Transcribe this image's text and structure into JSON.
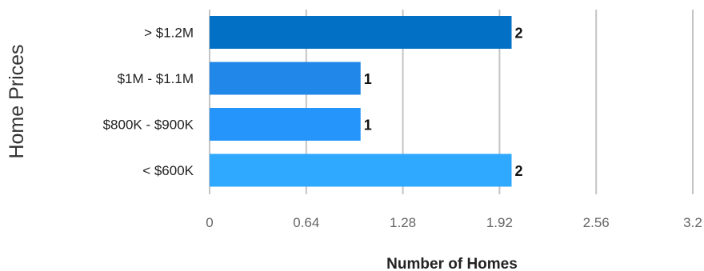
{
  "chart_data": {
    "type": "bar",
    "orientation": "horizontal",
    "title": "",
    "xlabel": "Number of Homes",
    "ylabel": "Home Prices",
    "categories": [
      "> $1.2M",
      "$1M - $1.1M",
      "$800K - $900K",
      "< $600K"
    ],
    "values": [
      2,
      1,
      1,
      2
    ],
    "data_labels": [
      "2",
      "1",
      "1",
      "2"
    ],
    "xlim": [
      0,
      3.2
    ],
    "xticks": [
      0,
      0.64,
      1.28,
      1.92,
      2.56,
      3.2
    ],
    "xtick_labels": [
      "0",
      "0.64",
      "1.28",
      "1.92",
      "2.56",
      "3.2"
    ],
    "bar_colors": [
      "#0270C4",
      "#2187E8",
      "#2595FB",
      "#2FA8FF"
    ],
    "grid": true,
    "legend": "none"
  }
}
